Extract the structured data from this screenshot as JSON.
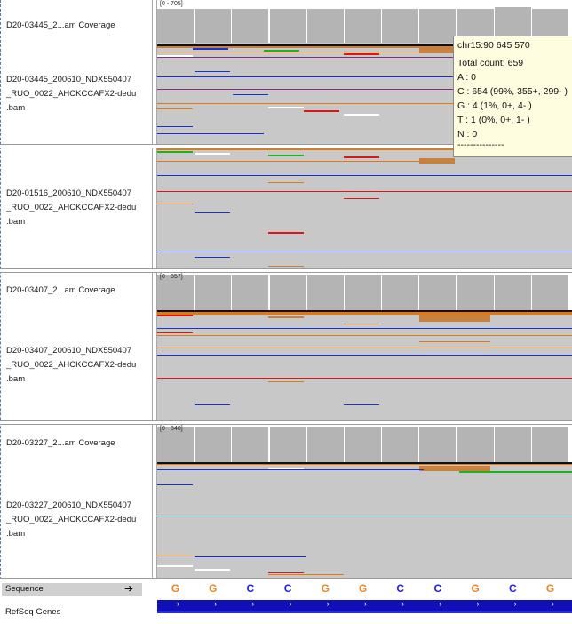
{
  "tracks": [
    {
      "coverage_label": "D20-03445_2...am Coverage",
      "range": "[0 - 705]",
      "bam_label": [
        "D20-03445_200610_NDX550407",
        "_RUO_0022_AHCKCCAFX2-dedu",
        ".bam"
      ]
    },
    {
      "coverage_label": "",
      "range": "",
      "bam_label": [
        "D20-01516_200610_NDX550407",
        "_RUO_0022_AHCKCCAFX2-dedu",
        ".bam"
      ]
    },
    {
      "coverage_label": "D20-03407_2...am Coverage",
      "range": "[0 - 857]",
      "bam_label": [
        "D20-03407_200610_NDX550407",
        "_RUO_0022_AHCKCCAFX2-dedu",
        ".bam"
      ]
    },
    {
      "coverage_label": "D20-03227_2...am Coverage",
      "range": "[0 - 840]",
      "bam_label": [
        "D20-03227_200610_NDX550407",
        "_RUO_0022_AHCKCCAFX2-dedu",
        ".bam"
      ]
    }
  ],
  "tooltip": {
    "position": "chr15:90 645 570",
    "total": "Total count: 659",
    "a": "A : 0",
    "c": "C : 654 (99%, 355+, 299- )",
    "g": "G : 4 (1%, 0+, 4- )",
    "t": "T : 1 (0%, 0+, 1- )",
    "n": "N : 0",
    "dashes": "---------------"
  },
  "sequence": {
    "label": "Sequence",
    "bases": [
      "G",
      "G",
      "C",
      "C",
      "G",
      "G",
      "C",
      "C",
      "G",
      "C",
      "G"
    ],
    "colors": {
      "G": "#e8862a",
      "C": "#2020e0"
    }
  },
  "refseq": {
    "label": "RefSeq Genes"
  },
  "icons": {
    "sequence_arrow": "arrow-right-icon",
    "gene_strand": "chevron-right-icon"
  }
}
